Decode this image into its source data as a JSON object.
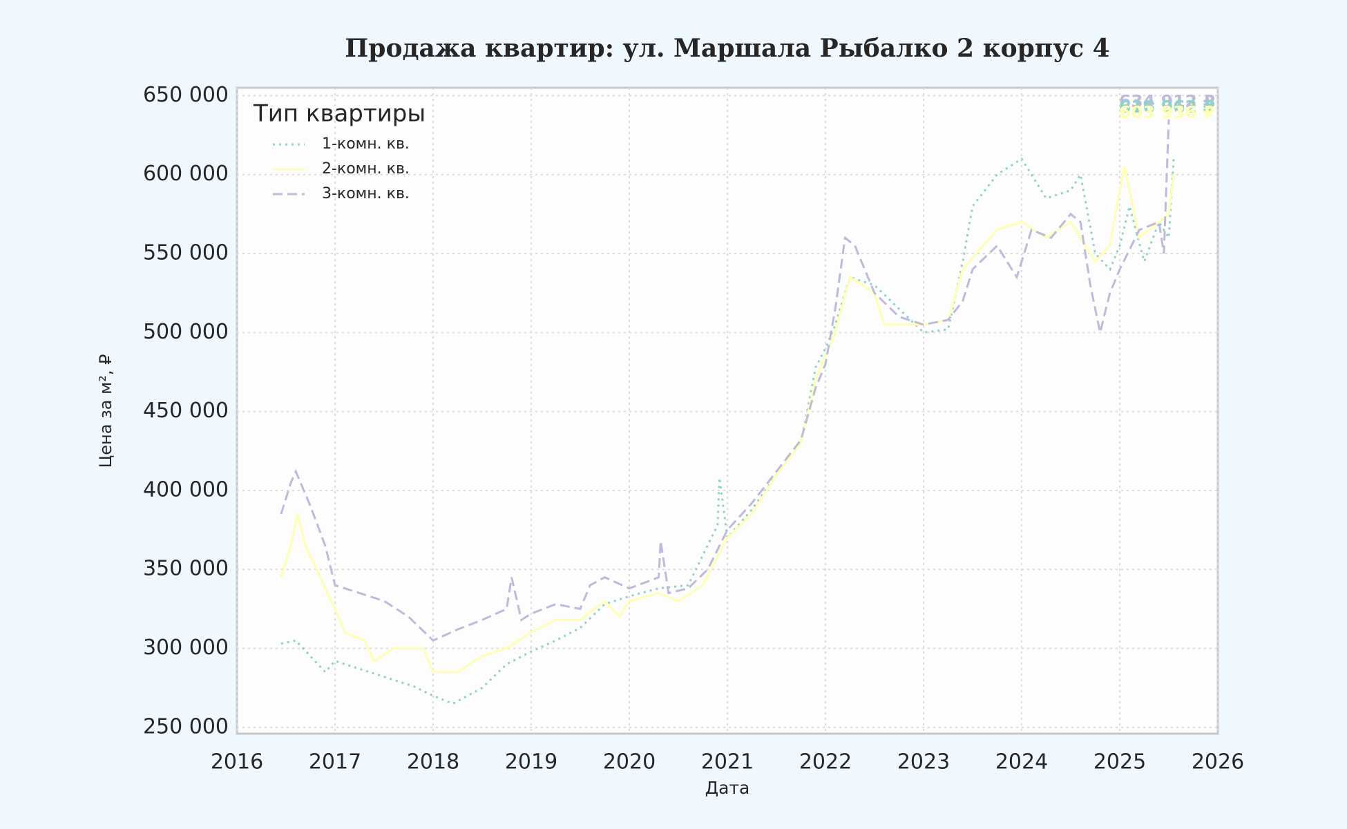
{
  "chart_data": {
    "type": "line",
    "title": "Продажа квартир: ул. Маршала Рыбалко 2 корпус 4",
    "x_label": "Дата",
    "y_label": "Цена за м², ₽",
    "legend_title": "Тип квартиры",
    "legend": "upper left",
    "grid": true,
    "xlim": [
      2016,
      2026
    ],
    "xticks": [
      2016,
      2017,
      2018,
      2019,
      2020,
      2021,
      2022,
      2023,
      2024,
      2025,
      2026
    ],
    "ylim": [
      246000,
      655000
    ],
    "yticks": [
      {
        "value": 250000,
        "label": "250 000"
      },
      {
        "value": 300000,
        "label": "300 000"
      },
      {
        "value": 350000,
        "label": "350 000"
      },
      {
        "value": 400000,
        "label": "400 000"
      },
      {
        "value": 450000,
        "label": "450 000"
      },
      {
        "value": 500000,
        "label": "500 000"
      },
      {
        "value": 550000,
        "label": "550 000"
      },
      {
        "value": 600000,
        "label": "600 000"
      },
      {
        "value": 650000,
        "label": "650 000"
      }
    ],
    "series": [
      {
        "name": "1-комн. кв.",
        "color": "#8dd3c7",
        "dash": "dotted",
        "x": [
          2016.45,
          2016.6,
          2016.9,
          2017.0,
          2017.5,
          2017.8,
          2018.0,
          2018.2,
          2018.5,
          2018.75,
          2019.0,
          2019.25,
          2019.5,
          2019.75,
          2020.0,
          2020.3,
          2020.6,
          2020.9,
          2020.92,
          2021.0,
          2021.25,
          2021.5,
          2021.75,
          2021.9,
          2022.0,
          2022.1,
          2022.25,
          2022.5,
          2022.75,
          2023.0,
          2023.25,
          2023.4,
          2023.5,
          2023.75,
          2024.0,
          2024.25,
          2024.5,
          2024.6,
          2024.75,
          2024.9,
          2025.0,
          2025.1,
          2025.25,
          2025.4,
          2025.5,
          2025.55
        ],
        "values": [
          303000,
          305000,
          285000,
          292000,
          282000,
          276000,
          270000,
          265000,
          275000,
          290000,
          298000,
          305000,
          313000,
          328000,
          333000,
          338000,
          340000,
          378000,
          408000,
          370000,
          388000,
          410000,
          430000,
          478000,
          490000,
          505000,
          535000,
          530000,
          515000,
          500000,
          502000,
          545000,
          580000,
          600000,
          610000,
          585000,
          590000,
          600000,
          550000,
          540000,
          555000,
          580000,
          545000,
          570000,
          560000,
          610000
        ]
      },
      {
        "name": "2-комн. кв.",
        "color": "#ffffb3",
        "dash": "solid",
        "x": [
          2016.45,
          2016.55,
          2016.62,
          2016.7,
          2016.85,
          2017.0,
          2017.1,
          2017.3,
          2017.4,
          2017.6,
          2017.9,
          2018.0,
          2018.25,
          2018.5,
          2018.75,
          2019.0,
          2019.25,
          2019.5,
          2019.75,
          2019.9,
          2020.0,
          2020.3,
          2020.5,
          2020.75,
          2021.0,
          2021.25,
          2021.5,
          2021.75,
          2021.9,
          2022.1,
          2022.25,
          2022.5,
          2022.6,
          2023.0,
          2023.25,
          2023.4,
          2023.75,
          2024.0,
          2024.25,
          2024.5,
          2024.75,
          2024.9,
          2025.0,
          2025.05,
          2025.2,
          2025.5,
          2025.55
        ],
        "values": [
          345000,
          365000,
          385000,
          365000,
          345000,
          325000,
          310000,
          305000,
          292000,
          300000,
          300000,
          285000,
          285000,
          295000,
          300000,
          310000,
          318000,
          318000,
          330000,
          320000,
          330000,
          335000,
          330000,
          340000,
          370000,
          385000,
          410000,
          430000,
          470000,
          500000,
          535000,
          525000,
          505000,
          505000,
          508000,
          540000,
          565000,
          570000,
          560000,
          570000,
          545000,
          555000,
          590000,
          605000,
          560000,
          575000,
          600000
        ]
      },
      {
        "name": "3-комн. кв.",
        "color": "#bebada",
        "dash": "dashed",
        "x": [
          2016.45,
          2016.55,
          2016.6,
          2016.75,
          2016.9,
          2017.0,
          2017.25,
          2017.5,
          2017.75,
          2018.0,
          2018.25,
          2018.5,
          2018.75,
          2018.8,
          2018.9,
          2019.0,
          2019.25,
          2019.5,
          2019.6,
          2019.75,
          2020.0,
          2020.3,
          2020.32,
          2020.4,
          2020.6,
          2020.8,
          2021.0,
          2021.25,
          2021.5,
          2021.75,
          2021.9,
          2022.0,
          2022.1,
          2022.2,
          2022.3,
          2022.5,
          2022.75,
          2023.0,
          2023.25,
          2023.4,
          2023.5,
          2023.75,
          2023.95,
          2024.1,
          2024.3,
          2024.5,
          2024.6,
          2024.7,
          2024.8,
          2024.9,
          2025.0,
          2025.2,
          2025.4,
          2025.45,
          2025.5
        ],
        "values": [
          385000,
          405000,
          412000,
          390000,
          365000,
          340000,
          335000,
          330000,
          320000,
          305000,
          312000,
          318000,
          325000,
          345000,
          318000,
          322000,
          328000,
          325000,
          340000,
          345000,
          338000,
          345000,
          368000,
          335000,
          338000,
          350000,
          375000,
          392000,
          412000,
          432000,
          465000,
          480000,
          515000,
          560000,
          555000,
          525000,
          510000,
          505000,
          508000,
          520000,
          540000,
          555000,
          535000,
          565000,
          560000,
          575000,
          570000,
          530000,
          500000,
          525000,
          540000,
          565000,
          570000,
          550000,
          635000
        ]
      }
    ],
    "annotations": [
      {
        "text": "634 912 ₽",
        "color": "#bebada"
      },
      {
        "text": "616 962 ₽",
        "color": "#8dd3c7"
      },
      {
        "text": "603 936 ₽",
        "color": "#ffffb3"
      }
    ]
  }
}
